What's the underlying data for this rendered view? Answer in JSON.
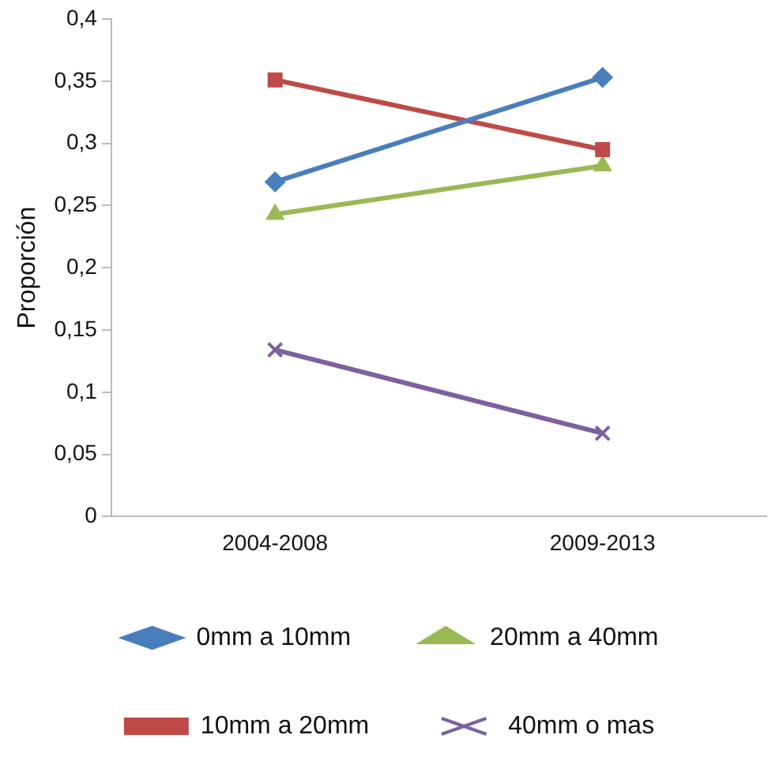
{
  "chart_data": {
    "type": "line",
    "ylabel": "Proporción",
    "categories": [
      "2004-2008",
      "2009-2013"
    ],
    "series": [
      {
        "name": "0mm a 10mm",
        "color": "#4a7ebb",
        "marker": "diamond",
        "values": [
          0.269,
          0.353
        ]
      },
      {
        "name": "10mm a 20mm",
        "color": "#be4b48",
        "marker": "square",
        "values": [
          0.351,
          0.295
        ]
      },
      {
        "name": "20mm a 40mm",
        "color": "#98b954",
        "marker": "triangle",
        "values": [
          0.243,
          0.282
        ]
      },
      {
        "name": "40mm o mas",
        "color": "#7d60a0",
        "marker": "cross",
        "values": [
          0.134,
          0.067
        ]
      }
    ],
    "ylim": [
      0,
      0.4
    ],
    "yticks": [
      0,
      {
        "value": 0.05,
        "label": "0,05"
      },
      {
        "value": 0.1,
        "label": "0,1"
      },
      {
        "value": 0.15,
        "label": "0,15"
      },
      {
        "value": 0.2,
        "label": "0,2"
      },
      {
        "value": 0.25,
        "label": "0,25"
      },
      {
        "value": 0.3,
        "label": "0,3"
      },
      {
        "value": 0.35,
        "label": "0,35"
      },
      {
        "value": 0.4,
        "label": "0,4"
      }
    ],
    "grid": false,
    "legend": "bottom",
    "line_style": "solid"
  }
}
